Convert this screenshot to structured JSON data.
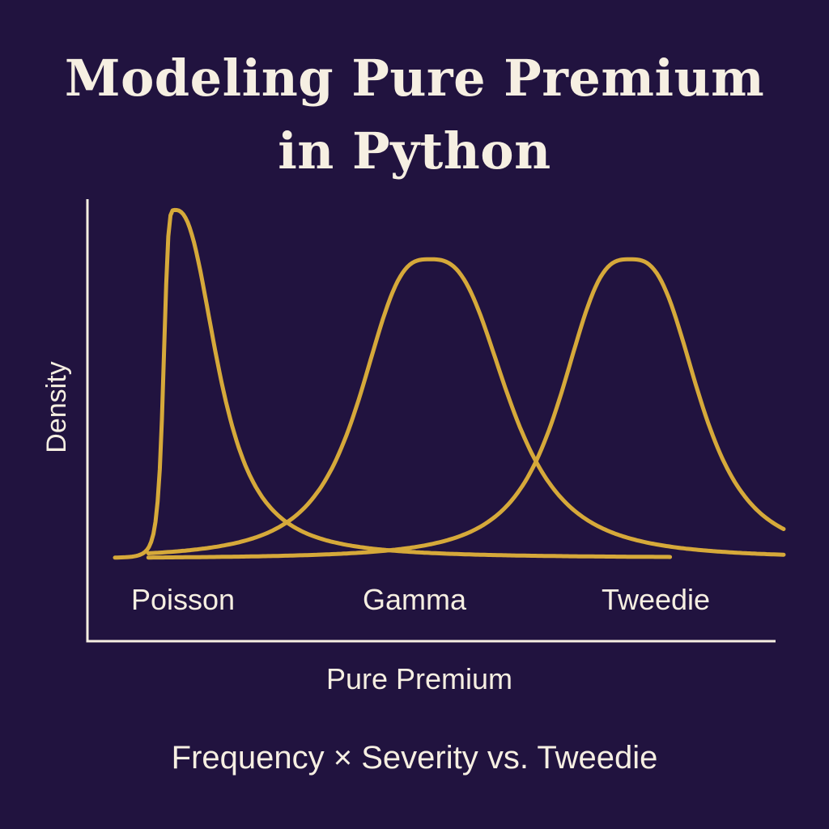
{
  "header": {
    "title_line1": "Modeling Pure Premium",
    "title_line2": "in Python"
  },
  "footer": {
    "subtitle": "Frequency × Severity vs. Tweedie"
  },
  "colors": {
    "background": "#21133f",
    "curve": "#d6a93a",
    "text": "#f6efe2",
    "axis": "#f6efe2"
  },
  "chart_data": {
    "type": "line",
    "title": "",
    "xlabel": "Pure Premium",
    "ylabel": "Density",
    "xlim": [
      0,
      1
    ],
    "ylim": [
      0,
      1
    ],
    "grid": false,
    "legend": "none",
    "series": [
      {
        "name": "Poisson",
        "peak_x": 0.09,
        "peak_y": 0.99
      },
      {
        "name": "Gamma",
        "peak_x": 0.47,
        "peak_y": 0.85
      },
      {
        "name": "Tweedie",
        "peak_x": 0.77,
        "peak_y": 0.85
      }
    ]
  }
}
